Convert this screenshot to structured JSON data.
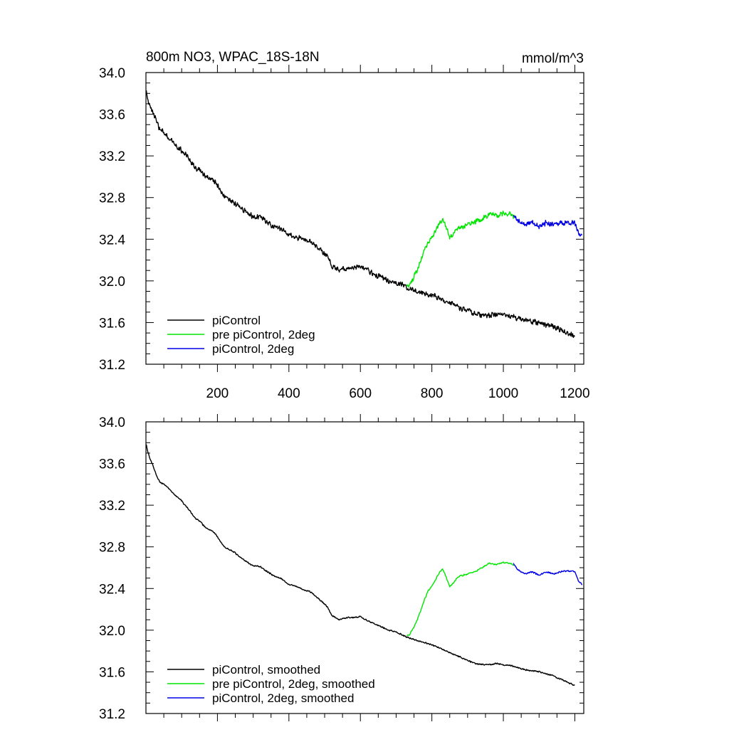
{
  "chart_data": [
    {
      "type": "line",
      "panel": "top",
      "title": "800m NO3, WPAC_18S-18N",
      "units": "mmol/m^3",
      "xlabel": "",
      "ylabel": "",
      "xlim": [
        0,
        1225
      ],
      "ylim": [
        31.2,
        34.0
      ],
      "x_ticks": [
        200,
        400,
        600,
        800,
        1000,
        1200
      ],
      "y_ticks": [
        34.0,
        33.6,
        33.2,
        32.8,
        32.4,
        32.0,
        31.6,
        31.2
      ],
      "y_tick_labels": [
        "34.0",
        "33.6",
        "33.2",
        "32.8",
        "32.4",
        "32.0",
        "31.6",
        "31.2"
      ],
      "x_tick_labels": [
        "200",
        "400",
        "600",
        "800",
        "1000",
        "1200"
      ],
      "show_x_tick_labels": true,
      "legend_position": "bottom-left",
      "series": [
        {
          "name": "piControl",
          "color": "#000000",
          "noise": 0.03,
          "x": [
            1,
            5,
            10,
            20,
            30,
            40,
            50,
            60,
            70,
            80,
            90,
            100,
            110,
            120,
            130,
            140,
            150,
            160,
            170,
            180,
            190,
            200,
            210,
            220,
            230,
            240,
            250,
            260,
            280,
            300,
            320,
            340,
            360,
            380,
            400,
            420,
            440,
            460,
            480,
            500,
            510,
            520,
            540,
            560,
            580,
            600,
            620,
            640,
            660,
            680,
            700,
            720,
            740,
            760,
            780,
            800,
            820,
            840,
            860,
            880,
            900,
            920,
            940,
            960,
            980,
            1000,
            1020,
            1040,
            1060,
            1080,
            1100,
            1120,
            1140,
            1160,
            1180,
            1200
          ],
          "values": [
            33.82,
            33.74,
            33.68,
            33.62,
            33.52,
            33.45,
            33.42,
            33.38,
            33.36,
            33.32,
            33.28,
            33.25,
            33.22,
            33.18,
            33.12,
            33.08,
            33.06,
            33.02,
            33.0,
            32.98,
            32.96,
            32.92,
            32.85,
            32.8,
            32.78,
            32.76,
            32.74,
            32.72,
            32.66,
            32.62,
            32.62,
            32.56,
            32.52,
            32.5,
            32.44,
            32.42,
            32.4,
            32.38,
            32.32,
            32.26,
            32.22,
            32.14,
            32.1,
            32.12,
            32.12,
            32.14,
            32.1,
            32.06,
            32.04,
            32.0,
            31.98,
            31.96,
            31.92,
            31.9,
            31.88,
            31.86,
            31.84,
            31.8,
            31.78,
            31.74,
            31.72,
            31.68,
            31.67,
            31.67,
            31.68,
            31.68,
            31.66,
            31.64,
            31.62,
            31.61,
            31.6,
            31.58,
            31.56,
            31.53,
            31.5,
            31.46
          ]
        },
        {
          "name": "pre piControl, 2deg",
          "color": "#00e600",
          "noise": 0.03,
          "x": [
            730,
            740,
            750,
            760,
            770,
            780,
            790,
            800,
            810,
            820,
            830,
            840,
            850,
            860,
            870,
            880,
            900,
            920,
            940,
            960,
            980,
            1000,
            1020,
            1030
          ],
          "values": [
            31.94,
            31.98,
            32.04,
            32.12,
            32.2,
            32.3,
            32.38,
            32.42,
            32.48,
            32.55,
            32.6,
            32.52,
            32.42,
            32.45,
            32.5,
            32.52,
            32.54,
            32.56,
            32.6,
            32.64,
            32.63,
            32.65,
            32.64,
            32.62
          ]
        },
        {
          "name": "piControl, 2deg",
          "color": "#0000e6",
          "noise": 0.03,
          "x": [
            1028,
            1040,
            1060,
            1080,
            1100,
            1120,
            1140,
            1160,
            1180,
            1200,
            1210,
            1220
          ],
          "values": [
            32.62,
            32.58,
            32.54,
            32.56,
            32.52,
            32.56,
            32.54,
            32.56,
            32.56,
            32.56,
            32.46,
            32.42
          ]
        }
      ]
    },
    {
      "type": "line",
      "panel": "bottom",
      "title": "",
      "xlabel": "",
      "ylabel": "",
      "xlim": [
        0,
        1225
      ],
      "ylim": [
        31.2,
        34.0
      ],
      "x_ticks": [
        200,
        400,
        600,
        800,
        1000,
        1200
      ],
      "y_ticks": [
        34.0,
        33.6,
        33.2,
        32.8,
        32.4,
        32.0,
        31.6,
        31.2
      ],
      "y_tick_labels": [
        "34.0",
        "33.6",
        "33.2",
        "32.8",
        "32.4",
        "32.0",
        "31.6",
        "31.2"
      ],
      "show_x_tick_labels": false,
      "legend_position": "bottom-left",
      "series": [
        {
          "name": "piControl, smoothed",
          "color": "#000000",
          "noise": 0.008,
          "x": [
            1,
            5,
            10,
            20,
            30,
            40,
            50,
            60,
            70,
            80,
            90,
            100,
            110,
            120,
            130,
            140,
            150,
            160,
            170,
            180,
            190,
            200,
            210,
            220,
            230,
            240,
            250,
            260,
            280,
            300,
            320,
            340,
            360,
            380,
            400,
            420,
            440,
            460,
            480,
            500,
            510,
            520,
            540,
            560,
            580,
            600,
            620,
            640,
            660,
            680,
            700,
            720,
            740,
            760,
            780,
            800,
            820,
            840,
            860,
            880,
            900,
            920,
            940,
            960,
            980,
            1000,
            1020,
            1040,
            1060,
            1080,
            1100,
            1120,
            1140,
            1160,
            1180,
            1200
          ],
          "values": [
            33.78,
            33.72,
            33.66,
            33.58,
            33.48,
            33.42,
            33.4,
            33.37,
            33.34,
            33.3,
            33.27,
            33.24,
            33.2,
            33.16,
            33.11,
            33.07,
            33.05,
            33.01,
            32.98,
            32.96,
            32.94,
            32.9,
            32.84,
            32.8,
            32.78,
            32.76,
            32.74,
            32.71,
            32.66,
            32.62,
            32.61,
            32.56,
            32.52,
            32.49,
            32.44,
            32.42,
            32.39,
            32.37,
            32.31,
            32.25,
            32.21,
            32.14,
            32.1,
            32.12,
            32.12,
            32.13,
            32.09,
            32.06,
            32.03,
            32.0,
            31.98,
            31.95,
            31.92,
            31.9,
            31.88,
            31.86,
            31.83,
            31.8,
            31.77,
            31.74,
            31.71,
            31.68,
            31.67,
            31.67,
            31.68,
            31.67,
            31.66,
            31.64,
            31.62,
            31.61,
            31.6,
            31.58,
            31.56,
            31.53,
            31.5,
            31.47
          ]
        },
        {
          "name": "pre piControl, 2deg, smoothed",
          "color": "#00e600",
          "noise": 0.008,
          "x": [
            730,
            740,
            750,
            760,
            770,
            780,
            790,
            800,
            810,
            820,
            830,
            840,
            850,
            860,
            870,
            880,
            900,
            920,
            940,
            960,
            980,
            1000,
            1020,
            1030
          ],
          "values": [
            31.94,
            31.97,
            32.03,
            32.11,
            32.2,
            32.3,
            32.38,
            32.42,
            32.48,
            32.55,
            32.59,
            32.51,
            32.42,
            32.45,
            32.5,
            32.52,
            32.54,
            32.56,
            32.6,
            32.64,
            32.63,
            32.65,
            32.64,
            32.62
          ]
        },
        {
          "name": "piControl, 2deg, smoothed",
          "color": "#0000e6",
          "noise": 0.008,
          "x": [
            1028,
            1040,
            1060,
            1080,
            1100,
            1120,
            1140,
            1160,
            1180,
            1200,
            1210,
            1220
          ],
          "values": [
            32.64,
            32.58,
            32.54,
            32.56,
            32.53,
            32.56,
            32.54,
            32.56,
            32.57,
            32.56,
            32.47,
            32.44
          ]
        }
      ]
    }
  ]
}
